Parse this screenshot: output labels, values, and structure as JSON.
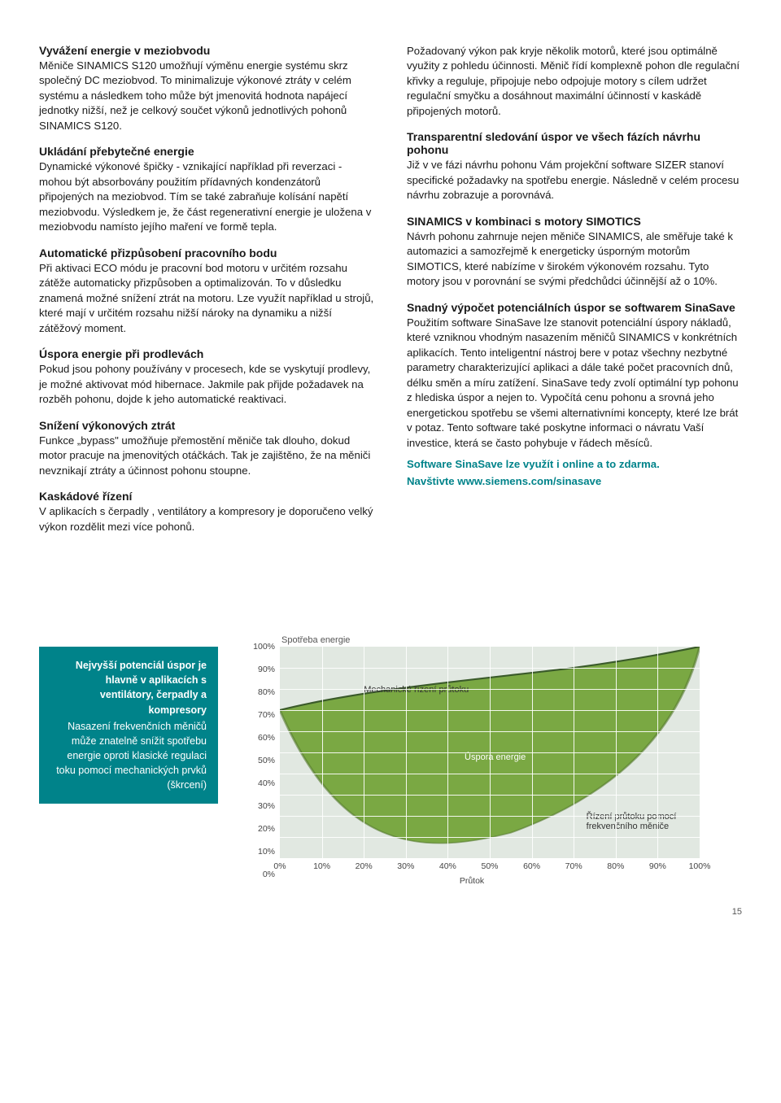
{
  "left": {
    "s1_h": "Vyvážení energie v meziobvodu",
    "s1_p": "Měniče SINAMICS S120 umožňují výměnu energie systému skrz společný DC meziobvod. To minimalizuje výkonové ztráty v celém systému a následkem toho může být jmenovitá hodnota napájecí jednotky nižší, než je celkový součet výkonů jednotlivých pohonů SINAMICS S120.",
    "s2_h": "Ukládání přebytečné energie",
    "s2_p": "Dynamické výkonové špičky - vznikající například při reverzaci - mohou být absorbovány použitím přídavných kondenzátorů připojených na meziobvod. Tím se také zabraňuje kolísání napětí meziobvodu. Výsledkem je, že část regenerativní energie je uložena v meziobvodu namísto jejího maření ve formě tepla.",
    "s3_h": "Automatické přizpůsobení pracovního bodu",
    "s3_p": "Při aktivaci ECO módu je pracovní bod motoru v určitém rozsahu zátěže automaticky přizpůsoben a optimalizován. To v důsledku znamená možné snížení ztrát na motoru. Lze využít například u strojů, které mají v určitém rozsahu nižší nároky na dynamiku a nižší zátěžový moment.",
    "s4_h": "Úspora energie při prodlevách",
    "s4_p": "Pokud jsou pohony používány v procesech, kde se vyskytují prodlevy, je možné aktivovat mód hibernace. Jakmile pak přijde požadavek na rozběh pohonu, dojde k jeho automatické reaktivaci.",
    "s5_h": "Snížení výkonových ztrát",
    "s5_p": "Funkce „bypass\" umožňuje přemostění měniče tak dlouho, dokud motor pracuje na jmenovitých otáčkách. Tak je zajištěno, že na měniči nevznikají ztráty a účinnost pohonu stoupne.",
    "s6_h": "Kaskádové řízení",
    "s6_p": "V aplikacích s čerpadly , ventilátory a kompresory je doporučeno velký výkon rozdělit mezi více pohonů."
  },
  "right": {
    "r0_p": "Požadovaný výkon pak kryje několik motorů, které jsou optimálně využity z pohledu účinnosti. Měnič řídí komplexně pohon dle regulační křivky a reguluje, připojuje nebo odpojuje motory s cílem udržet regulační smyčku a dosáhnout maximální účinností v kaskádě připojených motorů.",
    "r1_h": "Transparentní sledování úspor ve všech fázích návrhu pohonu",
    "r1_p": "Již v ve fázi návrhu pohonu Vám projekční software SIZER stanoví specifické požadavky na spotřebu energie. Následně v celém procesu návrhu zobrazuje a porovnává.",
    "r2_h": "SINAMICS v kombinaci s motory SIMOTICS",
    "r2_p": "Návrh pohonu zahrnuje nejen měniče SINAMICS, ale směřuje také k automazici a samozřejmě k energeticky úsporným motorům SIMOTICS, které nabízíme v širokém výkonovém rozsahu. Tyto motory jsou v porovnání se svými předchůdci účinnější až o 10%.",
    "r3_h": "Snadný výpočet potenciálních úspor se softwarem SinaSave",
    "r3_p": "Použitím software SinaSave lze stanovit potenciální úspory nákladů, které vzniknou vhodným nasazením měničů SINAMICS v konkrétních aplikacích. Tento inteligentní nástroj bere v potaz všechny nezbytné parametry charakterizující aplikaci a dále také počet pracovních dnů, délku směn a míru zatížení. SinaSave tedy zvolí optimální typ pohonu z hlediska úspor a nejen to. Vypočítá cenu pohonu a srovná jeho energetickou spotřebu se všemi alternativními koncepty, které lze brát v potaz. Tento software také poskytne informaci o návratu Vaší investice, která se často pohybuje v řádech měsíců.",
    "link1": "Software SinaSave lze využít i online a to zdarma.",
    "link2": "Navštivte www.siemens.com/sinasave"
  },
  "chart": {
    "caption_bold": "Nejvyšší potenciál úspor je hlavně v aplikacích s ventilátory, čerpadly a kompresory",
    "caption_rest": "Nasazení frekvenčních měničů může znatelně snížit spotřebu energie oproti klasické regulaci toku pomocí mechanických prvků (škrcení)",
    "title": "Spotřeba energie",
    "xlabel": "Průtok",
    "y_ticks": [
      "100%",
      "90%",
      "80%",
      "70%",
      "60%",
      "50%",
      "40%",
      "30%",
      "20%",
      "10%",
      "0%"
    ],
    "x_ticks": [
      "0%",
      "10%",
      "20%",
      "30%",
      "40%",
      "50%",
      "60%",
      "70%",
      "80%",
      "90%",
      "100%"
    ],
    "label_top": "Mechanické řízení průtoku",
    "label_mid": "Úspora energie",
    "label_bot": "Řízení průtoku pomocí frekvenčního měniče",
    "colors": {
      "leaf_fill": "#7aa843",
      "leaf_dark": "#557a2f",
      "top_line": "#3a5a2a",
      "grid_bg": "#e1e8e1",
      "teal": "#00838a"
    }
  },
  "page_num": "15"
}
